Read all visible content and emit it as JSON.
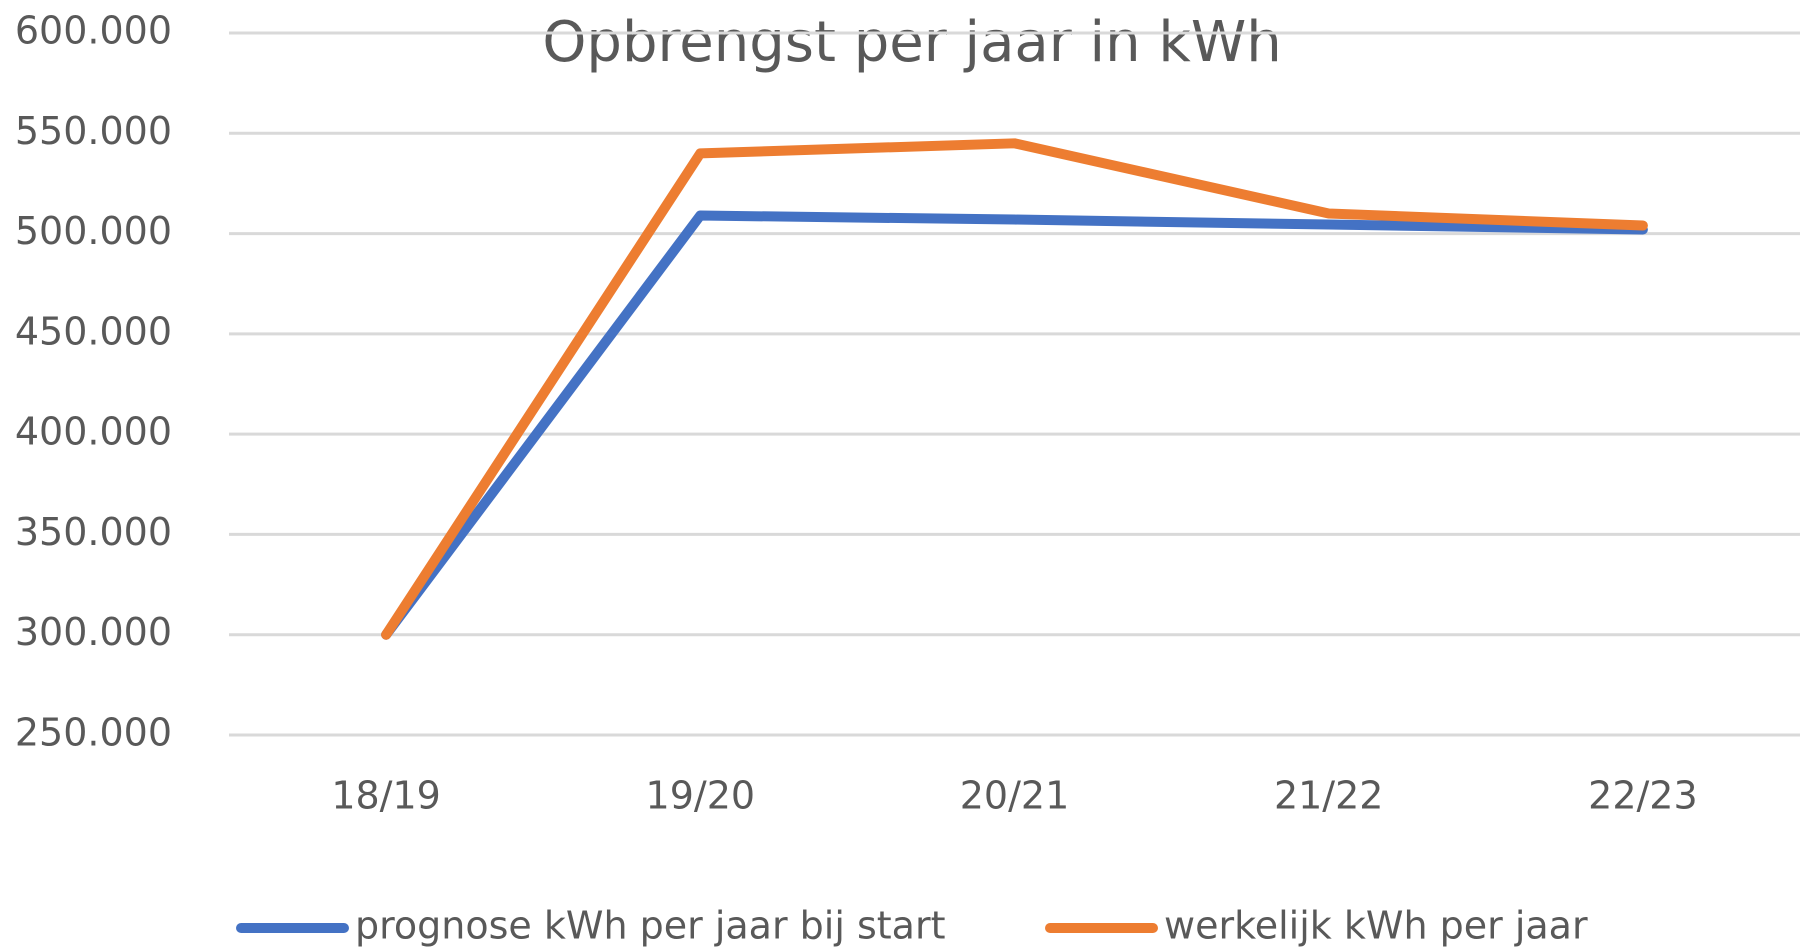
{
  "chart_data": {
    "type": "line",
    "title": "Opbrengst per jaar in kWh",
    "categories": [
      "18/19",
      "19/20",
      "20/21",
      "21/22",
      "22/23"
    ],
    "series": [
      {
        "name": "prognose kWh per jaar bij start",
        "color": "#4472c4",
        "values": [
          300000,
          509000,
          507000,
          504500,
          502000
        ]
      },
      {
        "name": "werkelijk kWh per jaar",
        "color": "#ed7d31",
        "values": [
          300000,
          540000,
          545000,
          510000,
          504000
        ]
      }
    ],
    "ylim": [
      250000,
      600000
    ],
    "yticks": [
      {
        "value": 250000,
        "label": "250.000"
      },
      {
        "value": 300000,
        "label": "300.000"
      },
      {
        "value": 350000,
        "label": "350.000"
      },
      {
        "value": 400000,
        "label": "400.000"
      },
      {
        "value": 450000,
        "label": "450.000"
      },
      {
        "value": 500000,
        "label": "500.000"
      },
      {
        "value": 550000,
        "label": "550.000"
      },
      {
        "value": 600000,
        "label": "600.000"
      }
    ],
    "grid": true,
    "legend": "bottom"
  }
}
